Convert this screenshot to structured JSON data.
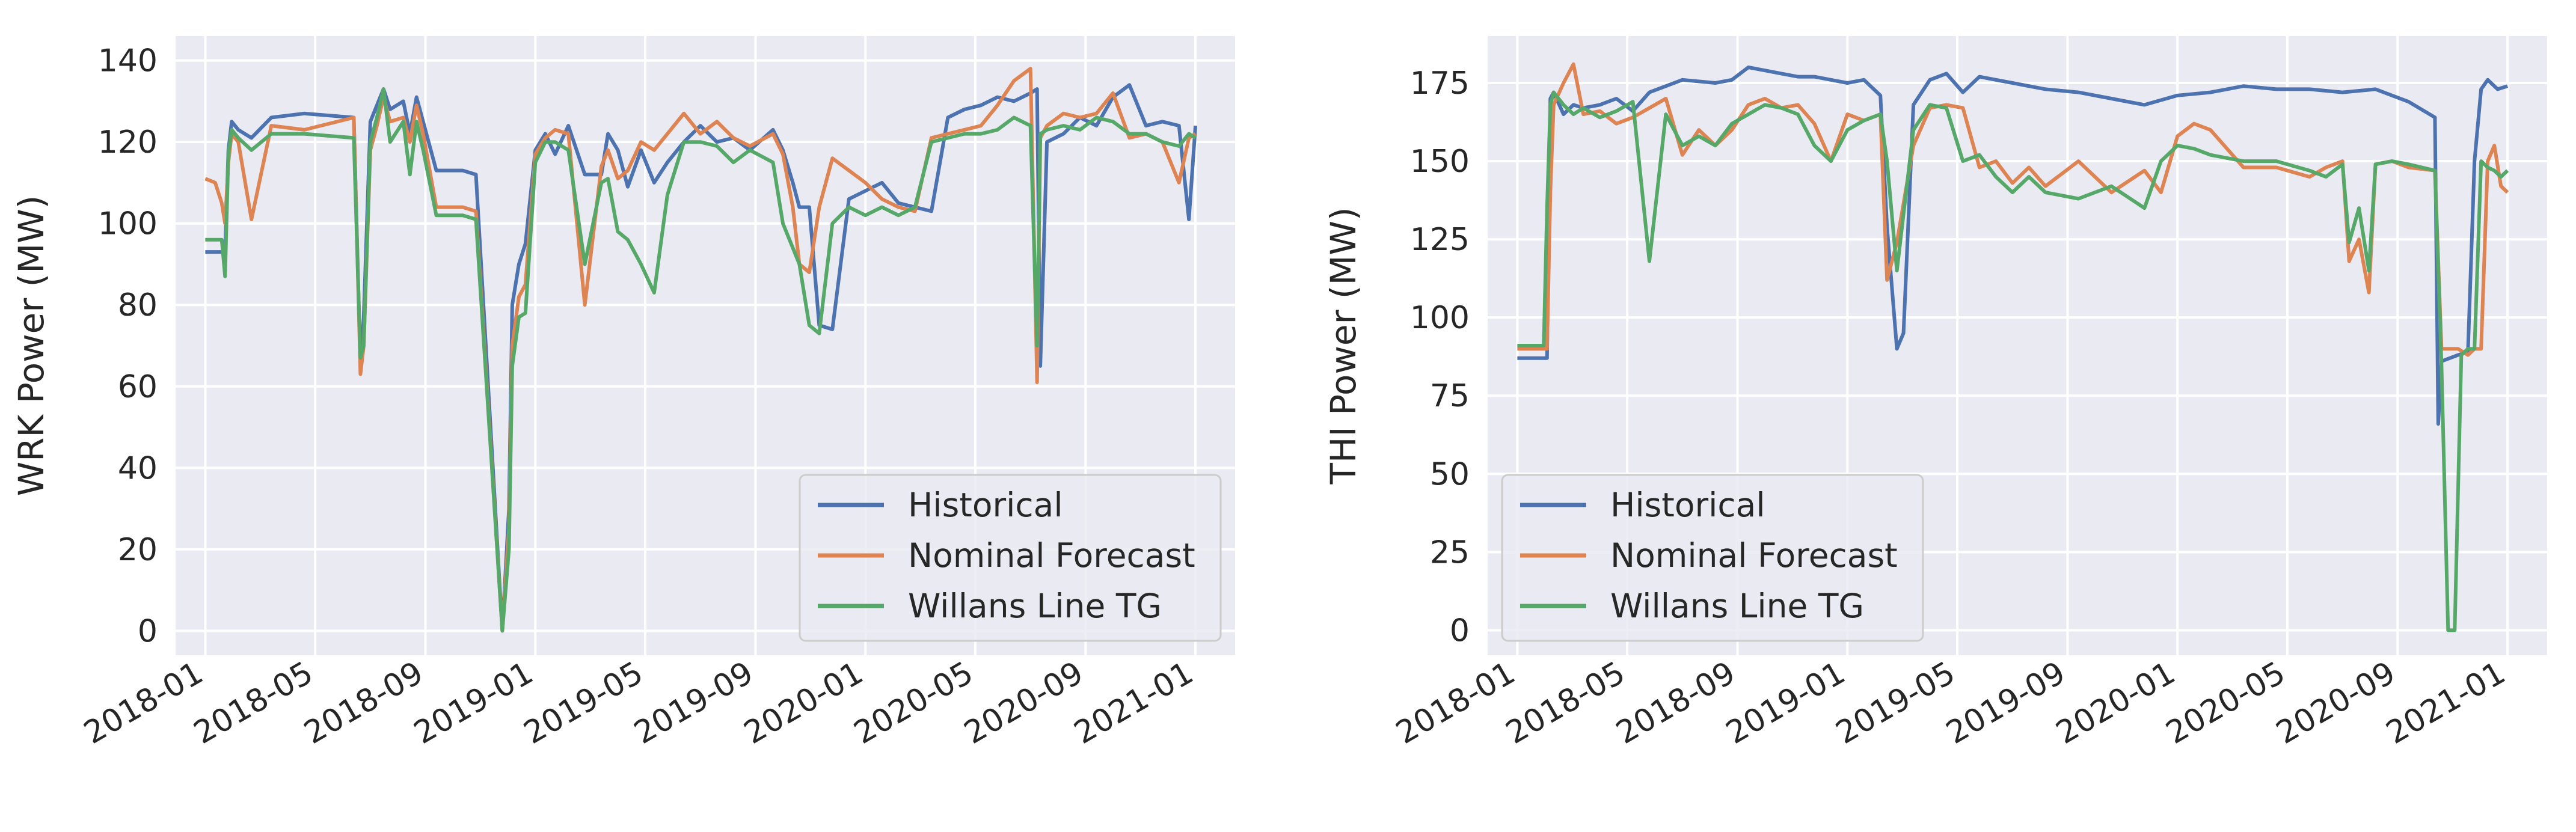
{
  "colors": {
    "background": "#eaeaf2",
    "grid": "#ffffff",
    "text": "#262626",
    "historical": "#4c72b0",
    "nominal_forecast": "#dd8452",
    "willans_line_tg": "#55a868"
  },
  "chart_data": [
    {
      "type": "line",
      "ylabel": "WRK Power (MW)",
      "xlabel": "",
      "title": "",
      "ylim": [
        -6,
        146
      ],
      "xlim": [
        2017.91,
        2021.12
      ],
      "yticks": [
        0,
        20,
        40,
        60,
        80,
        100,
        120,
        140
      ],
      "ytick_labels": [
        "0",
        "20",
        "40",
        "60",
        "80",
        "100",
        "120",
        "140"
      ],
      "xticks": [
        2018.0,
        2018.333,
        2018.667,
        2019.0,
        2019.333,
        2019.667,
        2020.0,
        2020.333,
        2020.667,
        2021.0
      ],
      "xtick_labels": [
        "2018-01",
        "2018-05",
        "2018-09",
        "2019-01",
        "2019-05",
        "2019-09",
        "2020-01",
        "2020-05",
        "2020-09",
        "2021-01"
      ],
      "legend_position": "lower-right",
      "series": [
        {
          "name": "Historical",
          "color": "#4c72b0",
          "x": [
            2018.0,
            2018.06,
            2018.07,
            2018.08,
            2018.1,
            2018.14,
            2018.2,
            2018.3,
            2018.45,
            2018.47,
            2018.48,
            2018.5,
            2018.52,
            2018.54,
            2018.56,
            2018.6,
            2018.62,
            2018.64,
            2018.66,
            2018.7,
            2018.75,
            2018.78,
            2018.82,
            2018.9,
            2018.92,
            2018.93,
            2018.95,
            2018.97,
            2019.0,
            2019.03,
            2019.06,
            2019.1,
            2019.15,
            2019.2,
            2019.22,
            2019.25,
            2019.28,
            2019.32,
            2019.36,
            2019.4,
            2019.45,
            2019.5,
            2019.55,
            2019.6,
            2019.65,
            2019.72,
            2019.75,
            2019.78,
            2019.8,
            2019.83,
            2019.86,
            2019.9,
            2019.95,
            2020.0,
            2020.05,
            2020.1,
            2020.15,
            2020.2,
            2020.25,
            2020.3,
            2020.35,
            2020.4,
            2020.45,
            2020.5,
            2020.52,
            2020.53,
            2020.55,
            2020.6,
            2020.65,
            2020.7,
            2020.75,
            2020.8,
            2020.85,
            2020.9,
            2020.95,
            2020.98,
            2021.0
          ],
          "y": [
            93,
            93,
            118,
            125,
            123,
            121,
            126,
            127,
            126,
            65,
            77,
            125,
            129,
            133,
            128,
            130,
            122,
            131,
            125,
            113,
            113,
            113,
            112,
            0,
            30,
            80,
            90,
            95,
            118,
            122,
            117,
            124,
            112,
            112,
            122,
            118,
            109,
            118,
            110,
            115,
            120,
            124,
            120,
            121,
            118,
            123,
            118,
            110,
            104,
            104,
            75,
            74,
            106,
            108,
            110,
            105,
            104,
            103,
            126,
            128,
            129,
            131,
            130,
            132,
            133,
            65,
            120,
            122,
            126,
            124,
            131,
            134,
            124,
            125,
            124,
            101,
            124
          ]
        },
        {
          "name": "Nominal Forecast",
          "color": "#dd8452",
          "x": [
            2018.0,
            2018.03,
            2018.05,
            2018.06,
            2018.07,
            2018.08,
            2018.1,
            2018.14,
            2018.2,
            2018.3,
            2018.45,
            2018.47,
            2018.48,
            2018.5,
            2018.52,
            2018.54,
            2018.56,
            2018.6,
            2018.62,
            2018.64,
            2018.66,
            2018.7,
            2018.75,
            2018.78,
            2018.82,
            2018.9,
            2018.92,
            2018.93,
            2018.95,
            2018.97,
            2019.0,
            2019.03,
            2019.06,
            2019.1,
            2019.15,
            2019.2,
            2019.22,
            2019.25,
            2019.28,
            2019.32,
            2019.36,
            2019.4,
            2019.45,
            2019.5,
            2019.55,
            2019.6,
            2019.65,
            2019.72,
            2019.75,
            2019.78,
            2019.8,
            2019.83,
            2019.86,
            2019.9,
            2019.95,
            2020.0,
            2020.05,
            2020.1,
            2020.15,
            2020.2,
            2020.25,
            2020.3,
            2020.35,
            2020.4,
            2020.45,
            2020.5,
            2020.52,
            2020.53,
            2020.55,
            2020.6,
            2020.65,
            2020.7,
            2020.75,
            2020.8,
            2020.85,
            2020.9,
            2020.95,
            2020.98,
            2021.0
          ],
          "y": [
            111,
            110,
            105,
            100,
            115,
            122,
            120,
            101,
            124,
            123,
            126,
            63,
            70,
            118,
            124,
            131,
            125,
            126,
            120,
            129,
            122,
            104,
            104,
            104,
            103,
            0,
            25,
            70,
            82,
            85,
            117,
            121,
            123,
            122,
            80,
            114,
            118,
            111,
            113,
            120,
            118,
            122,
            127,
            122,
            125,
            121,
            119,
            122,
            117,
            104,
            90,
            88,
            104,
            116,
            113,
            110,
            106,
            104,
            103,
            121,
            122,
            123,
            124,
            129,
            135,
            138,
            61,
            121,
            124,
            127,
            126,
            127,
            132,
            121,
            122,
            120,
            110,
            121,
            122
          ]
        },
        {
          "name": "Willans Line TG",
          "color": "#55a868",
          "x": [
            2018.0,
            2018.05,
            2018.06,
            2018.07,
            2018.08,
            2018.1,
            2018.14,
            2018.2,
            2018.3,
            2018.45,
            2018.47,
            2018.48,
            2018.5,
            2018.52,
            2018.54,
            2018.56,
            2018.6,
            2018.62,
            2018.64,
            2018.66,
            2018.7,
            2018.75,
            2018.78,
            2018.82,
            2018.9,
            2018.92,
            2018.93,
            2018.95,
            2018.97,
            2019.0,
            2019.03,
            2019.06,
            2019.1,
            2019.15,
            2019.2,
            2019.22,
            2019.25,
            2019.28,
            2019.32,
            2019.36,
            2019.4,
            2019.45,
            2019.5,
            2019.55,
            2019.6,
            2019.65,
            2019.72,
            2019.75,
            2019.78,
            2019.8,
            2019.83,
            2019.86,
            2019.9,
            2019.95,
            2020.0,
            2020.05,
            2020.1,
            2020.15,
            2020.2,
            2020.25,
            2020.3,
            2020.35,
            2020.4,
            2020.45,
            2020.5,
            2020.52,
            2020.53,
            2020.55,
            2020.6,
            2020.65,
            2020.7,
            2020.75,
            2020.8,
            2020.85,
            2020.9,
            2020.95,
            2020.98,
            2021.0
          ],
          "y": [
            96,
            96,
            87,
            117,
            123,
            121,
            118,
            122,
            122,
            121,
            67,
            70,
            120,
            126,
            133,
            120,
            125,
            112,
            125,
            118,
            102,
            102,
            102,
            101,
            0,
            20,
            65,
            77,
            78,
            115,
            120,
            120,
            118,
            90,
            110,
            111,
            98,
            96,
            90,
            83,
            107,
            120,
            120,
            119,
            115,
            118,
            115,
            100,
            94,
            90,
            75,
            73,
            100,
            104,
            102,
            104,
            102,
            104,
            120,
            121,
            122,
            122,
            123,
            126,
            124,
            70,
            122,
            123,
            124,
            123,
            126,
            125,
            122,
            122,
            120,
            119,
            122,
            121
          ]
        }
      ]
    },
    {
      "type": "line",
      "ylabel": "THI Power (MW)",
      "xlabel": "",
      "title": "",
      "ylim": [
        -8,
        190
      ],
      "xlim": [
        2017.91,
        2021.12
      ],
      "yticks": [
        0,
        25,
        50,
        75,
        100,
        125,
        150,
        175
      ],
      "ytick_labels": [
        "0",
        "25",
        "50",
        "75",
        "100",
        "125",
        "150",
        "175"
      ],
      "xticks": [
        2018.0,
        2018.333,
        2018.667,
        2019.0,
        2019.333,
        2019.667,
        2020.0,
        2020.333,
        2020.667,
        2021.0
      ],
      "xtick_labels": [
        "2018-01",
        "2018-05",
        "2018-09",
        "2019-01",
        "2019-05",
        "2019-09",
        "2020-01",
        "2020-05",
        "2020-09",
        "2021-01"
      ],
      "legend_position": "lower-left",
      "series": [
        {
          "name": "Historical",
          "color": "#4c72b0",
          "x": [
            2018.0,
            2018.09,
            2018.1,
            2018.11,
            2018.14,
            2018.17,
            2018.2,
            2018.25,
            2018.3,
            2018.35,
            2018.4,
            2018.5,
            2018.6,
            2018.65,
            2018.7,
            2018.75,
            2018.8,
            2018.85,
            2018.9,
            2018.95,
            2019.0,
            2019.05,
            2019.1,
            2019.12,
            2019.15,
            2019.17,
            2019.2,
            2019.25,
            2019.3,
            2019.35,
            2019.4,
            2019.5,
            2019.6,
            2019.7,
            2019.8,
            2019.9,
            2020.0,
            2020.1,
            2020.2,
            2020.3,
            2020.4,
            2020.5,
            2020.6,
            2020.7,
            2020.78,
            2020.79,
            2020.8,
            2020.85,
            2020.88,
            2020.9,
            2020.92,
            2020.94,
            2020.97,
            2021.0
          ],
          "y": [
            87,
            87,
            170,
            172,
            165,
            168,
            167,
            168,
            170,
            166,
            172,
            176,
            175,
            176,
            180,
            179,
            178,
            177,
            177,
            176,
            175,
            176,
            171,
            129,
            90,
            95,
            168,
            176,
            178,
            172,
            177,
            175,
            173,
            172,
            170,
            168,
            171,
            172,
            174,
            173,
            173,
            172,
            173,
            169,
            164,
            66,
            86,
            88,
            89,
            150,
            173,
            176,
            173,
            174
          ]
        },
        {
          "name": "Nominal Forecast",
          "color": "#dd8452",
          "x": [
            2018.0,
            2018.09,
            2018.1,
            2018.11,
            2018.14,
            2018.17,
            2018.2,
            2018.25,
            2018.3,
            2018.35,
            2018.4,
            2018.45,
            2018.5,
            2018.55,
            2018.6,
            2018.65,
            2018.7,
            2018.75,
            2018.8,
            2018.85,
            2018.9,
            2018.95,
            2019.0,
            2019.05,
            2019.1,
            2019.12,
            2019.15,
            2019.2,
            2019.25,
            2019.3,
            2019.35,
            2019.4,
            2019.45,
            2019.5,
            2019.55,
            2019.6,
            2019.7,
            2019.8,
            2019.9,
            2019.95,
            2020.0,
            2020.05,
            2020.1,
            2020.2,
            2020.3,
            2020.4,
            2020.45,
            2020.5,
            2020.52,
            2020.55,
            2020.58,
            2020.6,
            2020.65,
            2020.7,
            2020.78,
            2020.8,
            2020.85,
            2020.88,
            2020.9,
            2020.92,
            2020.94,
            2020.96,
            2020.98,
            2021.0
          ],
          "y": [
            90,
            90,
            140,
            168,
            175,
            181,
            165,
            166,
            162,
            164,
            167,
            170,
            152,
            160,
            155,
            160,
            168,
            170,
            167,
            168,
            162,
            150,
            165,
            163,
            165,
            112,
            124,
            155,
            167,
            168,
            167,
            148,
            150,
            143,
            148,
            142,
            150,
            140,
            147,
            140,
            158,
            162,
            160,
            148,
            148,
            145,
            148,
            150,
            118,
            125,
            108,
            149,
            150,
            148,
            147,
            90,
            90,
            88,
            90,
            90,
            150,
            155,
            142,
            140
          ]
        },
        {
          "name": "Willans Line TG",
          "color": "#55a868",
          "x": [
            2018.0,
            2018.08,
            2018.09,
            2018.1,
            2018.11,
            2018.14,
            2018.17,
            2018.2,
            2018.25,
            2018.3,
            2018.35,
            2018.4,
            2018.45,
            2018.5,
            2018.55,
            2018.6,
            2018.65,
            2018.7,
            2018.75,
            2018.8,
            2018.85,
            2018.9,
            2018.95,
            2019.0,
            2019.05,
            2019.1,
            2019.12,
            2019.15,
            2019.2,
            2019.25,
            2019.3,
            2019.35,
            2019.4,
            2019.45,
            2019.5,
            2019.55,
            2019.6,
            2019.7,
            2019.8,
            2019.9,
            2019.95,
            2020.0,
            2020.05,
            2020.1,
            2020.2,
            2020.3,
            2020.4,
            2020.45,
            2020.5,
            2020.52,
            2020.55,
            2020.58,
            2020.6,
            2020.65,
            2020.7,
            2020.78,
            2020.8,
            2020.82,
            2020.84,
            2020.86,
            2020.88,
            2020.9,
            2020.92,
            2020.94,
            2020.96,
            2020.98,
            2021.0
          ],
          "y": [
            91,
            91,
            135,
            168,
            172,
            168,
            165,
            167,
            164,
            166,
            169,
            118,
            165,
            155,
            158,
            155,
            162,
            165,
            168,
            167,
            165,
            155,
            150,
            160,
            163,
            165,
            150,
            115,
            160,
            168,
            167,
            150,
            152,
            145,
            140,
            145,
            140,
            138,
            142,
            135,
            150,
            155,
            154,
            152,
            150,
            150,
            147,
            145,
            149,
            124,
            135,
            115,
            149,
            150,
            149,
            147,
            85,
            0,
            0,
            88,
            90,
            90,
            150,
            148,
            147,
            145,
            147
          ]
        }
      ]
    }
  ]
}
